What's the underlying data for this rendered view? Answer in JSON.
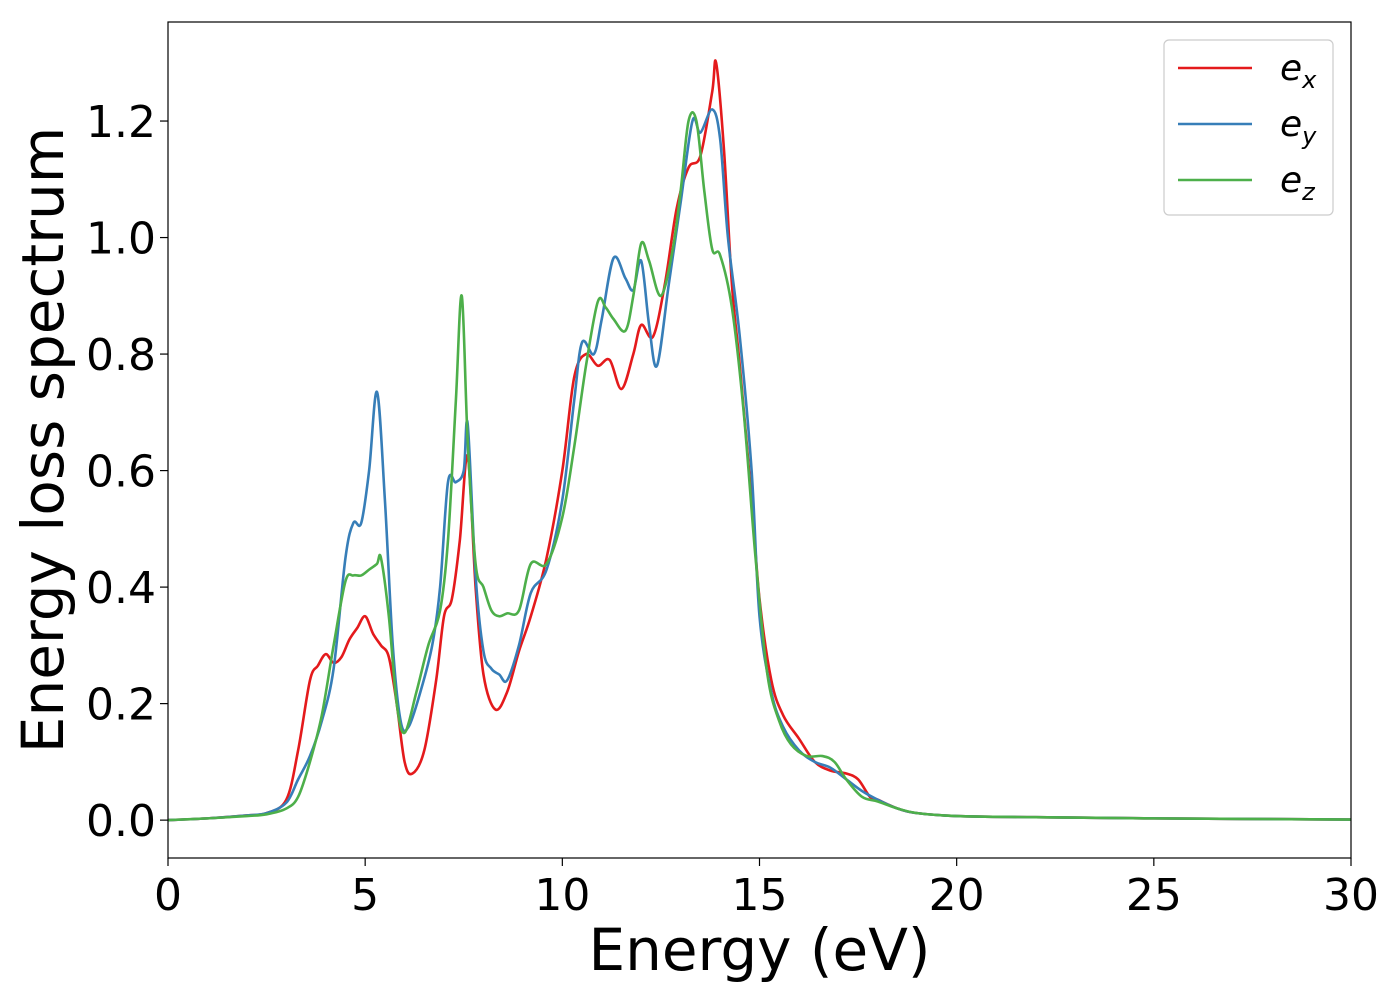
{
  "chart_data": {
    "type": "line",
    "xlabel": "Energy (eV)",
    "ylabel": "Energy loss spectrum",
    "xlim": [
      0,
      30
    ],
    "ylim": [
      -0.065,
      1.37
    ],
    "xticks": [
      0,
      5,
      10,
      15,
      20,
      25,
      30
    ],
    "yticks": [
      0.0,
      0.2,
      0.4,
      0.6,
      0.8,
      1.0,
      1.2
    ],
    "grid": false,
    "legend_position": "top-right",
    "series": [
      {
        "name": "e_x",
        "label_base": "e",
        "label_sub": "x",
        "color": "#e41a1c",
        "x": [
          0,
          1,
          2,
          2.5,
          3.0,
          3.3,
          3.6,
          3.8,
          4.0,
          4.2,
          4.4,
          4.6,
          4.8,
          5.0,
          5.2,
          5.4,
          5.6,
          5.8,
          6.0,
          6.2,
          6.5,
          6.8,
          7.0,
          7.2,
          7.4,
          7.6,
          7.8,
          8.0,
          8.3,
          8.6,
          8.9,
          9.2,
          9.6,
          10.0,
          10.3,
          10.6,
          10.9,
          11.2,
          11.5,
          11.8,
          12.0,
          12.3,
          12.6,
          12.9,
          13.2,
          13.5,
          13.8,
          13.9,
          14.1,
          14.3,
          14.5,
          14.8,
          15.0,
          15.3,
          15.6,
          16.0,
          16.4,
          16.8,
          17.2,
          17.5,
          17.8,
          18.0,
          18.5,
          19.0,
          20,
          22,
          25,
          30
        ],
        "y": [
          0.0,
          0.003,
          0.008,
          0.012,
          0.035,
          0.12,
          0.24,
          0.265,
          0.285,
          0.27,
          0.28,
          0.31,
          0.33,
          0.35,
          0.32,
          0.3,
          0.28,
          0.2,
          0.1,
          0.08,
          0.12,
          0.24,
          0.35,
          0.38,
          0.48,
          0.625,
          0.4,
          0.25,
          0.19,
          0.22,
          0.29,
          0.35,
          0.45,
          0.6,
          0.76,
          0.8,
          0.78,
          0.79,
          0.74,
          0.8,
          0.85,
          0.83,
          0.92,
          1.05,
          1.12,
          1.14,
          1.25,
          1.3,
          1.15,
          0.92,
          0.78,
          0.55,
          0.38,
          0.24,
          0.18,
          0.14,
          0.1,
          0.085,
          0.08,
          0.07,
          0.04,
          0.035,
          0.02,
          0.012,
          0.007,
          0.005,
          0.003,
          0.001
        ]
      },
      {
        "name": "e_y",
        "label_base": "e",
        "label_sub": "y",
        "color": "#377eb8",
        "x": [
          0,
          1,
          2,
          2.5,
          3.0,
          3.3,
          3.6,
          3.9,
          4.2,
          4.5,
          4.7,
          4.9,
          5.1,
          5.3,
          5.5,
          5.7,
          5.9,
          6.1,
          6.4,
          6.7,
          6.9,
          7.1,
          7.3,
          7.5,
          7.6,
          7.8,
          8.0,
          8.2,
          8.4,
          8.6,
          8.9,
          9.2,
          9.6,
          10.0,
          10.3,
          10.5,
          10.8,
          11.0,
          11.3,
          11.6,
          11.8,
          12.0,
          12.2,
          12.4,
          12.7,
          13.0,
          13.3,
          13.5,
          13.8,
          14.0,
          14.2,
          14.5,
          14.8,
          15.0,
          15.3,
          15.6,
          16.0,
          16.4,
          16.8,
          17.2,
          17.6,
          18.0,
          18.5,
          19.0,
          20,
          22,
          25,
          30
        ],
        "y": [
          0.0,
          0.003,
          0.008,
          0.012,
          0.03,
          0.07,
          0.11,
          0.17,
          0.26,
          0.45,
          0.51,
          0.51,
          0.6,
          0.735,
          0.55,
          0.3,
          0.17,
          0.16,
          0.22,
          0.3,
          0.4,
          0.58,
          0.58,
          0.6,
          0.68,
          0.42,
          0.29,
          0.26,
          0.25,
          0.24,
          0.3,
          0.39,
          0.43,
          0.55,
          0.72,
          0.82,
          0.8,
          0.86,
          0.965,
          0.93,
          0.91,
          0.96,
          0.85,
          0.78,
          0.92,
          1.06,
          1.2,
          1.18,
          1.22,
          1.17,
          1.0,
          0.83,
          0.6,
          0.35,
          0.22,
          0.16,
          0.12,
          0.1,
          0.09,
          0.07,
          0.05,
          0.035,
          0.02,
          0.012,
          0.007,
          0.005,
          0.003,
          0.001
        ]
      },
      {
        "name": "e_z",
        "label_base": "e",
        "label_sub": "z",
        "color": "#4daf4a",
        "x": [
          0,
          1,
          2,
          2.5,
          3.0,
          3.3,
          3.6,
          3.9,
          4.2,
          4.5,
          4.7,
          4.9,
          5.1,
          5.3,
          5.4,
          5.6,
          5.8,
          6.0,
          6.3,
          6.6,
          6.9,
          7.1,
          7.3,
          7.45,
          7.6,
          7.8,
          8.0,
          8.2,
          8.4,
          8.6,
          8.9,
          9.2,
          9.6,
          10.0,
          10.3,
          10.6,
          10.9,
          11.1,
          11.3,
          11.6,
          11.8,
          12.0,
          12.2,
          12.5,
          12.8,
          13.0,
          13.2,
          13.4,
          13.6,
          13.8,
          14.0,
          14.3,
          14.6,
          14.9,
          15.2,
          15.5,
          15.8,
          16.2,
          16.6,
          16.9,
          17.2,
          17.6,
          18.0,
          18.5,
          19.0,
          20,
          22,
          25,
          30
        ],
        "y": [
          0.0,
          0.003,
          0.007,
          0.01,
          0.02,
          0.04,
          0.1,
          0.18,
          0.3,
          0.41,
          0.42,
          0.42,
          0.43,
          0.44,
          0.45,
          0.35,
          0.2,
          0.15,
          0.22,
          0.3,
          0.36,
          0.48,
          0.72,
          0.9,
          0.65,
          0.44,
          0.4,
          0.36,
          0.35,
          0.355,
          0.36,
          0.44,
          0.44,
          0.52,
          0.64,
          0.78,
          0.89,
          0.88,
          0.86,
          0.84,
          0.9,
          0.99,
          0.96,
          0.9,
          0.98,
          1.08,
          1.2,
          1.2,
          1.08,
          0.98,
          0.97,
          0.88,
          0.7,
          0.45,
          0.25,
          0.17,
          0.13,
          0.11,
          0.11,
          0.1,
          0.07,
          0.04,
          0.032,
          0.02,
          0.012,
          0.007,
          0.005,
          0.003,
          0.001
        ]
      }
    ]
  }
}
